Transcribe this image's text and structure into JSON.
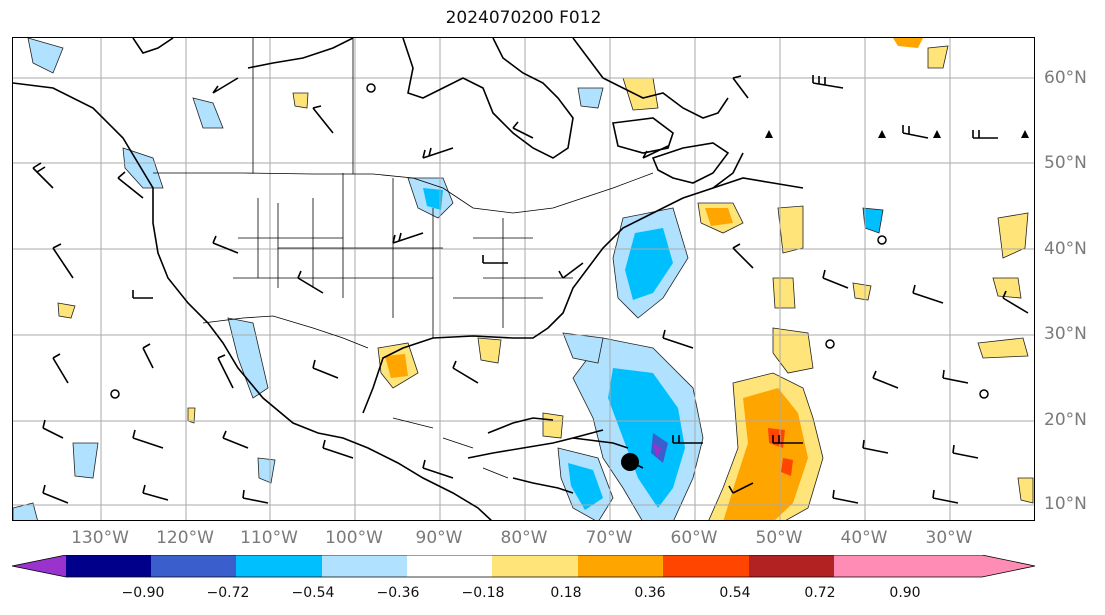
{
  "title": "2024070200 F012",
  "lon_labels": [
    "130°W",
    "120°W",
    "110°W",
    "100°W",
    "90°W",
    "80°W",
    "70°W",
    "60°W",
    "50°W",
    "40°W",
    "30°W"
  ],
  "lat_labels": [
    "60°N",
    "50°N",
    "40°N",
    "30°N",
    "20°N",
    "10°N"
  ],
  "colorbar": {
    "ticks": [
      "−0.90",
      "−0.72",
      "−0.54",
      "−0.36",
      "−0.18",
      "0.18",
      "0.36",
      "0.54",
      "0.72",
      "0.90"
    ],
    "colors": [
      "#9a32cd",
      "#00008b",
      "#3a5fcd",
      "#00bfff",
      "#b0e2ff",
      "#ffffff",
      "#ffe47a",
      "#ffa500",
      "#ff4500",
      "#b22222",
      "#ff8cb4"
    ]
  }
}
